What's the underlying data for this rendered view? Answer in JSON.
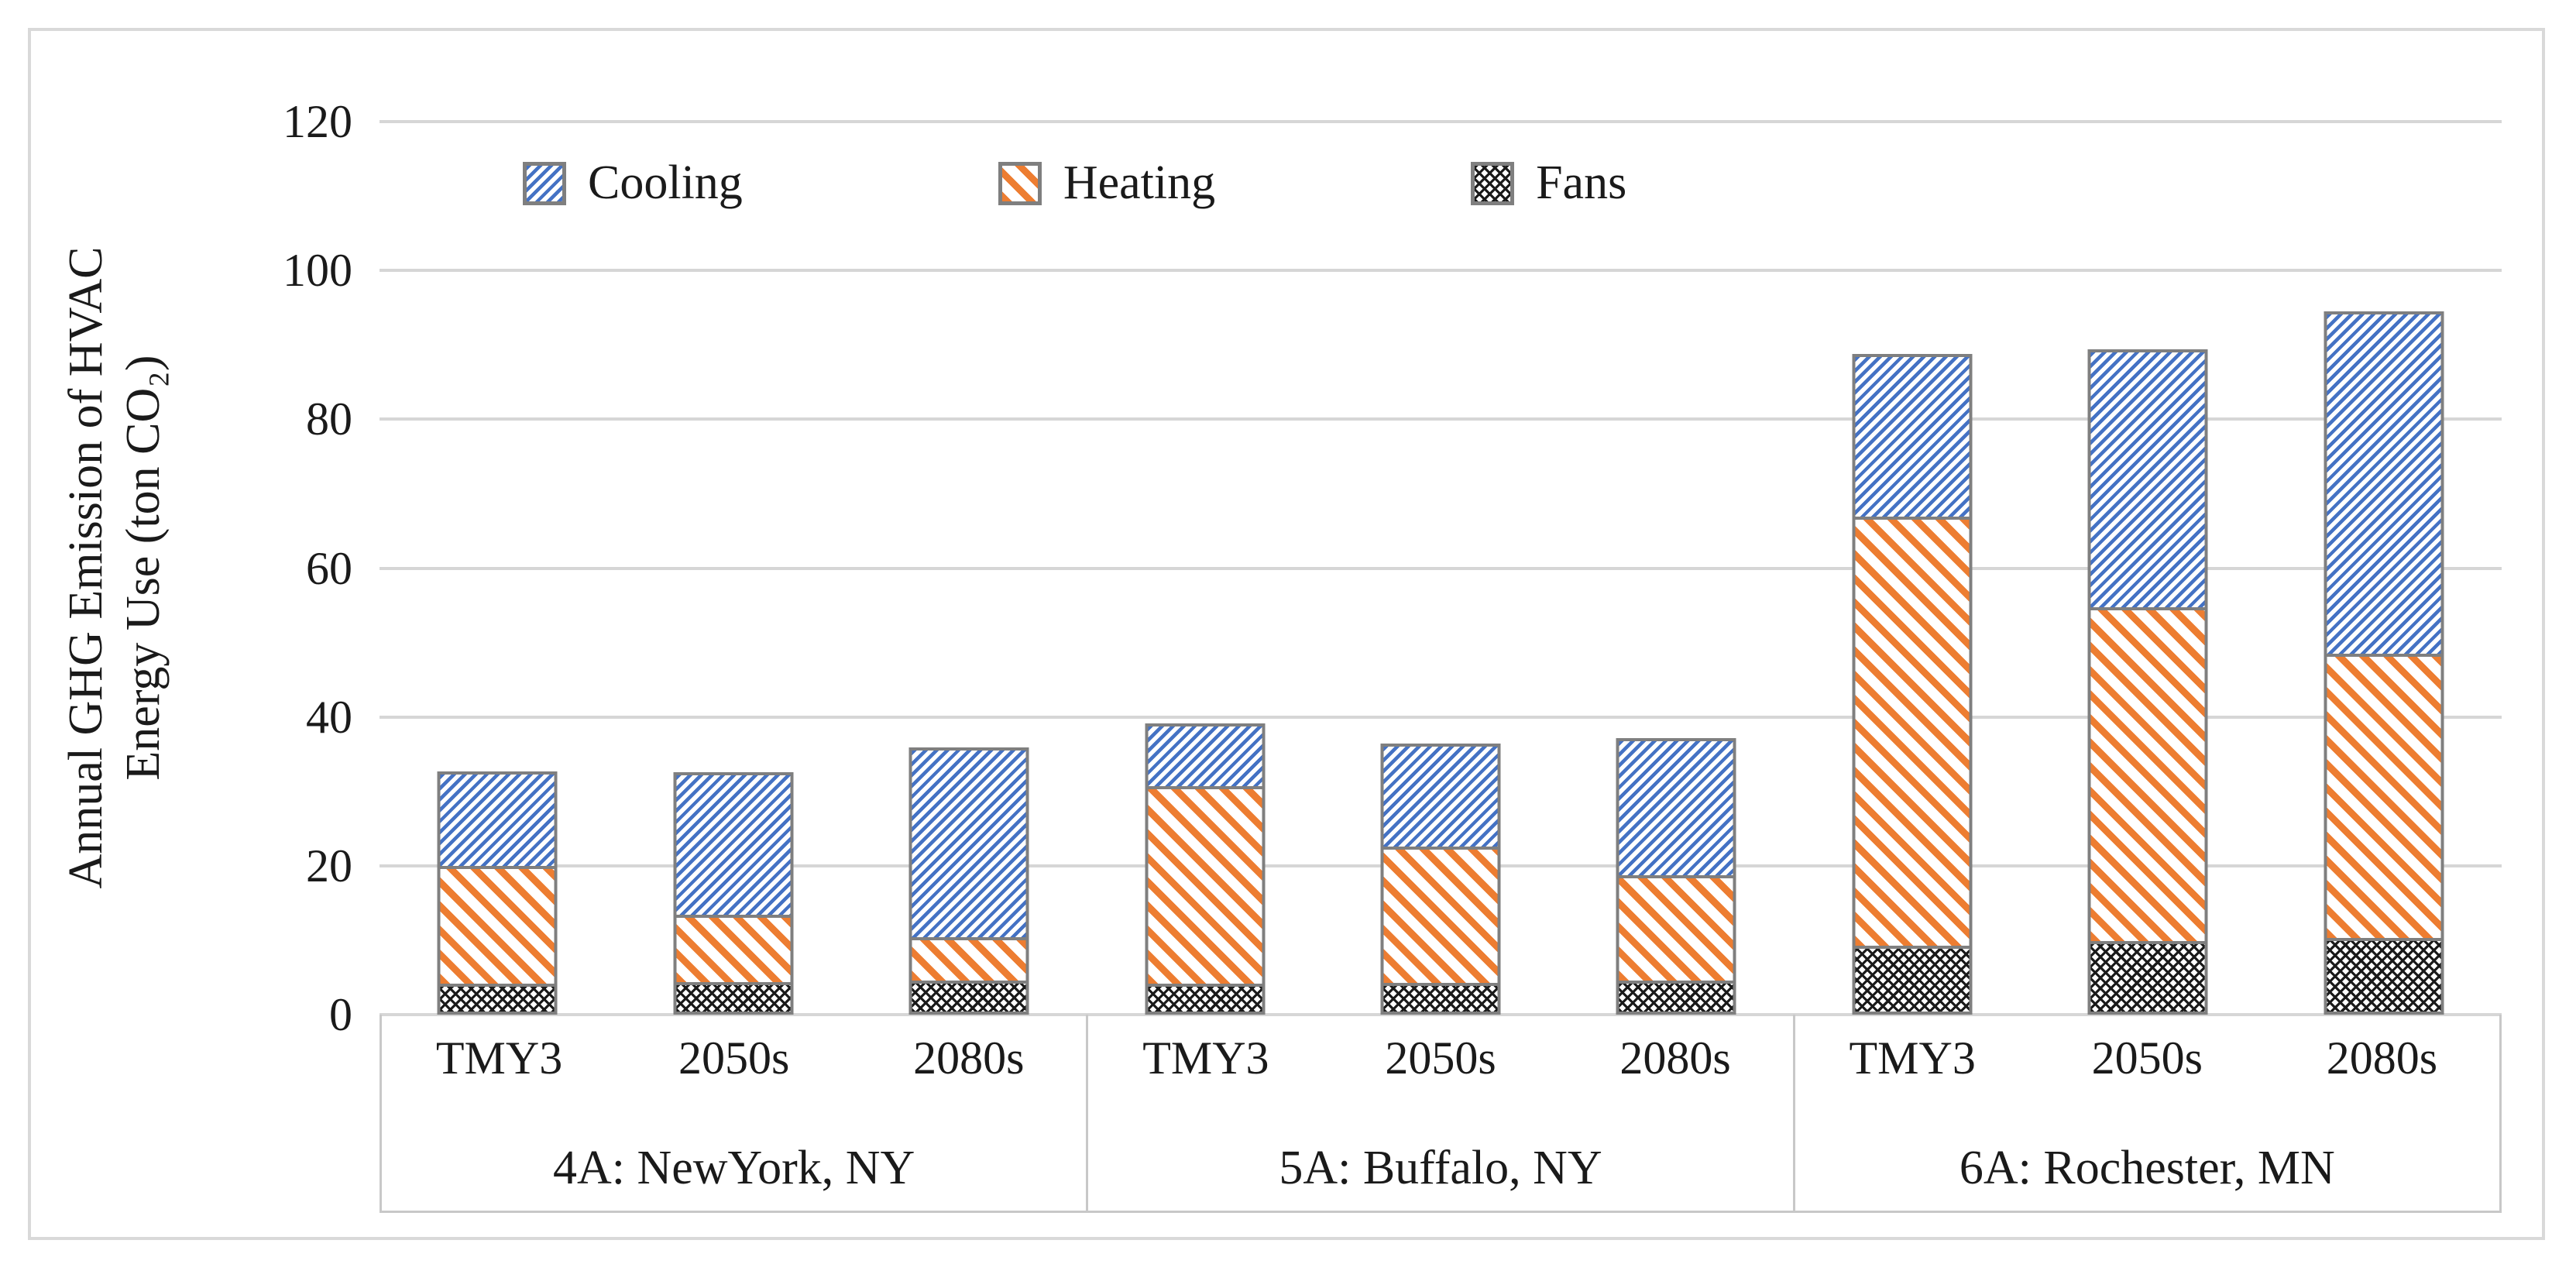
{
  "chart_data": {
    "type": "bar",
    "stacked": true,
    "grid": true,
    "legend_position": "top-inside",
    "ylabel": "Annual GHG Emission of HVAC\nEnergy Use (ton CO₂)",
    "ylim": [
      0,
      120
    ],
    "yticks": [
      0,
      20,
      40,
      60,
      80,
      100,
      120
    ],
    "groups": [
      {
        "label": "4A: NewYork, NY",
        "categories": [
          "TMY3",
          "2050s",
          "2080s"
        ]
      },
      {
        "label": "5A: Buffalo, NY",
        "categories": [
          "TMY3",
          "2050s",
          "2080s"
        ]
      },
      {
        "label": "6A: Rochester, MN",
        "categories": [
          "TMY3",
          "2050s",
          "2080s"
        ]
      }
    ],
    "series": [
      {
        "name": "Cooling",
        "color": "#4472C4",
        "pattern": "diagonal-up-hatch",
        "values": [
          12.7,
          19.2,
          25.5,
          8.4,
          13.8,
          18.4,
          21.9,
          34.7,
          46.0
        ]
      },
      {
        "name": "Heating",
        "color": "#ED7D31",
        "pattern": "diagonal-down-hatch",
        "values": [
          15.9,
          9.0,
          5.8,
          26.5,
          18.3,
          14.1,
          57.6,
          44.8,
          38.2
        ]
      },
      {
        "name": "Fans",
        "color": "#1A1A1A",
        "pattern": "crosshatch",
        "values": [
          3.7,
          4.0,
          4.2,
          3.8,
          3.9,
          4.2,
          8.9,
          9.5,
          9.9
        ]
      }
    ],
    "totals": [
      32.3,
      32.2,
      35.5,
      38.7,
      36.0,
      36.7,
      88.4,
      89.0,
      94.1
    ]
  },
  "colors": {
    "grid": "#D6D6D6",
    "bar_border": "#7F7F7F",
    "frame_border": "#D9D9D9",
    "text": "#1A1A1A"
  }
}
